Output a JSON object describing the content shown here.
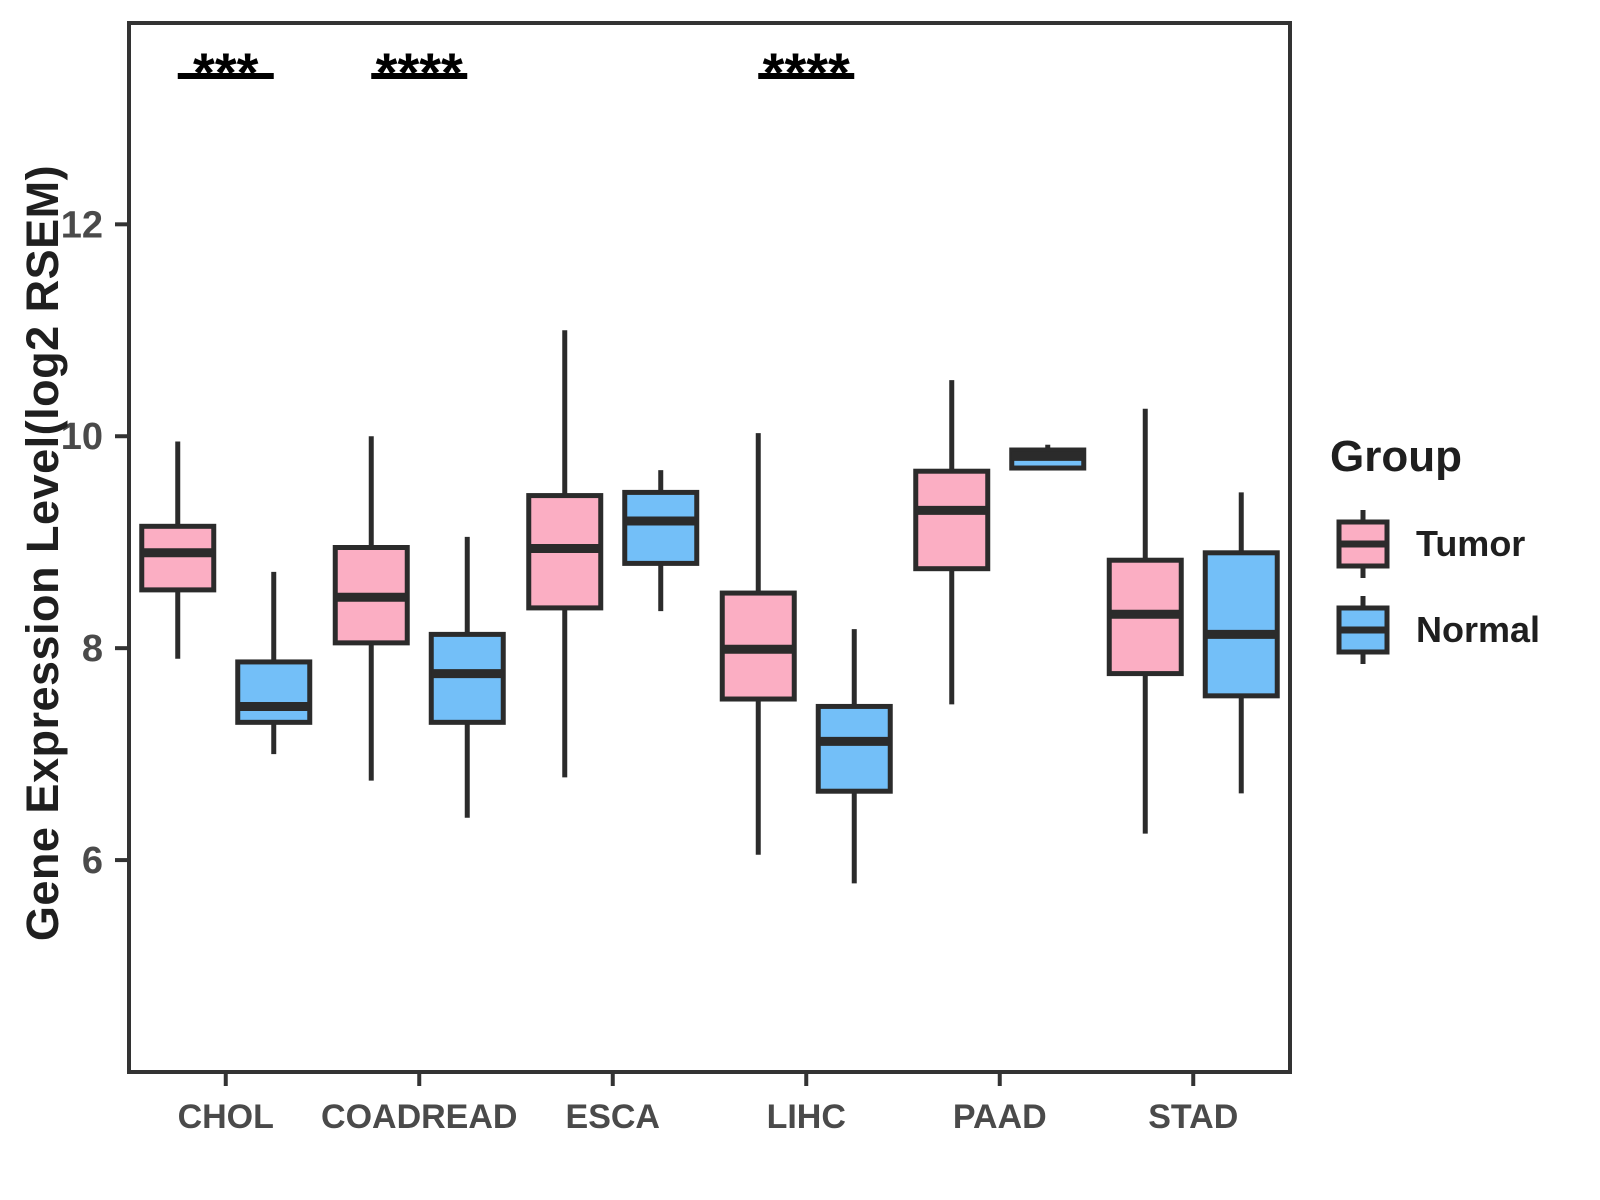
{
  "figure": {
    "background": "#FFFFFF"
  },
  "chart_data": {
    "type": "boxplot",
    "title": "",
    "xlabel": "",
    "ylabel": "Gene Expression Level(log2 RSEM)",
    "yticks": [
      6,
      8,
      10,
      12
    ],
    "ylim": [
      4.0,
      13.9
    ],
    "grid": false,
    "legend_position": "right",
    "categories": [
      "CHOL",
      "COADREAD",
      "ESCA",
      "LIHC",
      "PAAD",
      "STAD"
    ],
    "series": [
      {
        "name": "Tumor",
        "color": "#FBAEC3",
        "boxes": [
          {
            "category": "CHOL",
            "whisker_low": 7.9,
            "q1": 8.55,
            "median": 8.9,
            "q3": 9.15,
            "whisker_high": 9.95
          },
          {
            "category": "COADREAD",
            "whisker_low": 6.75,
            "q1": 8.05,
            "median": 8.48,
            "q3": 8.95,
            "whisker_high": 10.0
          },
          {
            "category": "ESCA",
            "whisker_low": 6.78,
            "q1": 8.38,
            "median": 8.94,
            "q3": 9.44,
            "whisker_high": 11.0
          },
          {
            "category": "LIHC",
            "whisker_low": 6.05,
            "q1": 7.52,
            "median": 7.99,
            "q3": 8.52,
            "whisker_high": 10.03
          },
          {
            "category": "PAAD",
            "whisker_low": 7.47,
            "q1": 8.75,
            "median": 9.3,
            "q3": 9.67,
            "whisker_high": 10.53
          },
          {
            "category": "STAD",
            "whisker_low": 6.25,
            "q1": 7.76,
            "median": 8.32,
            "q3": 8.83,
            "whisker_high": 10.26
          }
        ]
      },
      {
        "name": "Normal",
        "color": "#73BFF8",
        "boxes": [
          {
            "category": "CHOL",
            "whisker_low": 7.0,
            "q1": 7.3,
            "median": 7.45,
            "q3": 7.87,
            "whisker_high": 8.72
          },
          {
            "category": "COADREAD",
            "whisker_low": 6.4,
            "q1": 7.3,
            "median": 7.76,
            "q3": 8.13,
            "whisker_high": 9.05
          },
          {
            "category": "ESCA",
            "whisker_low": 8.35,
            "q1": 8.8,
            "median": 9.2,
            "q3": 9.47,
            "whisker_high": 9.68
          },
          {
            "category": "LIHC",
            "whisker_low": 5.78,
            "q1": 6.65,
            "median": 7.12,
            "q3": 7.45,
            "whisker_high": 8.18
          },
          {
            "category": "PAAD",
            "whisker_low": 9.68,
            "q1": 9.7,
            "median": 9.81,
            "q3": 9.87,
            "whisker_high": 9.92
          },
          {
            "category": "STAD",
            "whisker_low": 6.63,
            "q1": 7.55,
            "median": 8.13,
            "q3": 8.9,
            "whisker_high": 9.47
          }
        ]
      }
    ],
    "significance": [
      {
        "category": "CHOL",
        "label": "***"
      },
      {
        "category": "COADREAD",
        "label": "****"
      },
      {
        "category": "LIHC",
        "label": "****"
      }
    ]
  },
  "legend": {
    "title": "Group",
    "items": [
      {
        "label": "Tumor",
        "color": "#FBAEC3"
      },
      {
        "label": "Normal",
        "color": "#73BFF8"
      }
    ]
  },
  "style": {
    "box_stroke": "#2B2B2B",
    "axis_color": "#333333",
    "tick_text_color": "#4A4A4A",
    "annotation_color": "#000000"
  }
}
